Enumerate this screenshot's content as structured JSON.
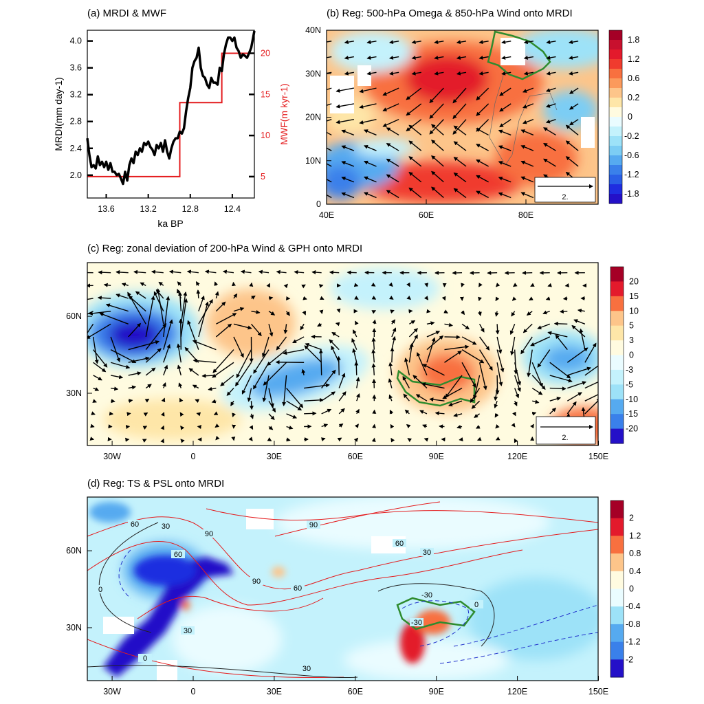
{
  "chart_data": [
    {
      "type": "line",
      "title": "(a) MRDI & MWF",
      "xlabel": "ka BP",
      "ylabel": "MRDI(mm day-1)",
      "ylabel_right": "MWF(m kyr-1)",
      "xlim": [
        13.78,
        12.19
      ],
      "ylim": [
        1.66,
        4.16
      ],
      "ylim_right": [
        2.4,
        22.8
      ],
      "xticks": [
        "13.6",
        "13.2",
        "12.8",
        "12.4"
      ],
      "yticks": [
        "2.0",
        "2.4",
        "2.8",
        "3.2",
        "3.6",
        "4.0"
      ],
      "yticks_right": [
        "5",
        "10",
        "15",
        "20"
      ],
      "series": [
        {
          "name": "MRDI",
          "color": "#000000",
          "x": [
            13.78,
            13.76,
            13.74,
            13.72,
            13.7,
            13.68,
            13.66,
            13.64,
            13.62,
            13.6,
            13.58,
            13.56,
            13.54,
            13.52,
            13.5,
            13.48,
            13.46,
            13.44,
            13.42,
            13.4,
            13.38,
            13.36,
            13.34,
            13.32,
            13.3,
            13.28,
            13.26,
            13.24,
            13.22,
            13.2,
            13.18,
            13.16,
            13.14,
            13.12,
            13.1,
            13.08,
            13.06,
            13.04,
            13.02,
            13.0,
            12.98,
            12.96,
            12.94,
            12.92,
            12.9,
            12.88,
            12.86,
            12.84,
            12.82,
            12.8,
            12.78,
            12.76,
            12.74,
            12.72,
            12.7,
            12.68,
            12.66,
            12.64,
            12.62,
            12.6,
            12.58,
            12.56,
            12.54,
            12.52,
            12.5,
            12.48,
            12.46,
            12.44,
            12.42,
            12.4,
            12.38,
            12.36,
            12.34,
            12.32,
            12.3,
            12.28,
            12.26,
            12.24,
            12.22,
            12.19
          ],
          "y": [
            2.55,
            2.3,
            2.12,
            2.15,
            2.1,
            2.28,
            2.15,
            2.2,
            2.12,
            2.2,
            2.08,
            2.18,
            2.05,
            2.05,
            2.0,
            2.02,
            1.95,
            1.87,
            2.05,
            1.92,
            2.15,
            2.25,
            2.18,
            2.35,
            2.3,
            2.4,
            2.35,
            2.48,
            2.45,
            2.5,
            2.42,
            2.38,
            2.3,
            2.45,
            2.4,
            2.48,
            2.35,
            2.52,
            2.35,
            2.25,
            2.4,
            2.5,
            2.55,
            2.55,
            2.65,
            2.62,
            2.7,
            2.95,
            3.15,
            3.3,
            3.6,
            3.7,
            3.75,
            3.9,
            3.6,
            3.48,
            3.45,
            3.35,
            3.3,
            3.45,
            3.38,
            3.38,
            3.35,
            3.6,
            3.55,
            3.8,
            3.95,
            4.05,
            4.05,
            4.0,
            4.05,
            3.9,
            3.85,
            3.75,
            3.8,
            3.78,
            3.75,
            3.82,
            3.9,
            4.15
          ]
        },
        {
          "name": "MWF",
          "color": "#e41a1c",
          "axis": "right",
          "type": "step",
          "x": [
            13.78,
            12.9,
            12.9,
            12.5,
            12.5,
            12.19
          ],
          "y": [
            5,
            5,
            14,
            14,
            20,
            20
          ]
        }
      ]
    },
    {
      "type": "heatmap",
      "title": "(b) Reg: 500-hPa Omega & 850-hPa Wind onto MRDI",
      "xticks": [
        "40E",
        "60E",
        "80E"
      ],
      "yticks": [
        "0",
        "10N",
        "20N",
        "30N",
        "40N"
      ],
      "xlim_lon": [
        40,
        95
      ],
      "ylim_lat": [
        0,
        40
      ],
      "reference_vector": "2.",
      "colorbar_labels": [
        "1.8",
        "1.2",
        "0.6",
        "0.2",
        "0",
        "-0.2",
        "-0.6",
        "-1.2",
        "-1.8"
      ],
      "colorbar_colors": [
        "#a50026",
        "#c8102e",
        "#e31a2c",
        "#f03b2e",
        "#f8703f",
        "#fb9a5c",
        "#fdc58a",
        "#fee6a8",
        "#fffbe0",
        "#eafcff",
        "#c4f2fc",
        "#9de2f8",
        "#7ccdf4",
        "#56aaf0",
        "#3a80ea",
        "#2a5fe6",
        "#1f2de0",
        "#2410c8"
      ]
    },
    {
      "type": "heatmap",
      "title": "(c) Reg: zonal deviation of 200-hPa Wind & GPH onto MRDI",
      "xticks": [
        "30W",
        "0",
        "30E",
        "60E",
        "90E",
        "120E",
        "150E"
      ],
      "yticks": [
        "30N",
        "60N"
      ],
      "reference_vector": "2.",
      "colorbar_labels": [
        "20",
        "15",
        "10",
        "5",
        "3",
        "0",
        "-3",
        "-5",
        "-10",
        "-15",
        "-20"
      ],
      "colorbar_colors": [
        "#a50026",
        "#e31a2c",
        "#f8703f",
        "#fdc58a",
        "#fee6a8",
        "#fffbe0",
        "#eafcff",
        "#c4f2fc",
        "#9de2f8",
        "#56aaf0",
        "#3a80ea",
        "#2410c8"
      ]
    },
    {
      "type": "heatmap",
      "title": "(d) Reg: TS & PSL onto MRDI",
      "xticks": [
        "30W",
        "0",
        "30E",
        "60E",
        "90E",
        "120E",
        "150E"
      ],
      "yticks": [
        "30N",
        "60N"
      ],
      "contour_labels": [
        "60",
        "30",
        "90",
        "60",
        "90",
        "60",
        "30",
        "90",
        "60",
        "0",
        "-30",
        "0",
        "30",
        "0",
        "30",
        "-30"
      ],
      "colorbar_labels": [
        "2",
        "1.2",
        "0.8",
        "0.4",
        "0",
        "-0.4",
        "-0.8",
        "-1.2",
        "-2"
      ],
      "colorbar_colors": [
        "#a50026",
        "#e31a2c",
        "#f8703f",
        "#fdc58a",
        "#fffbe0",
        "#eafcff",
        "#9de2f8",
        "#56aaf0",
        "#3a80ea",
        "#2410c8"
      ]
    }
  ]
}
